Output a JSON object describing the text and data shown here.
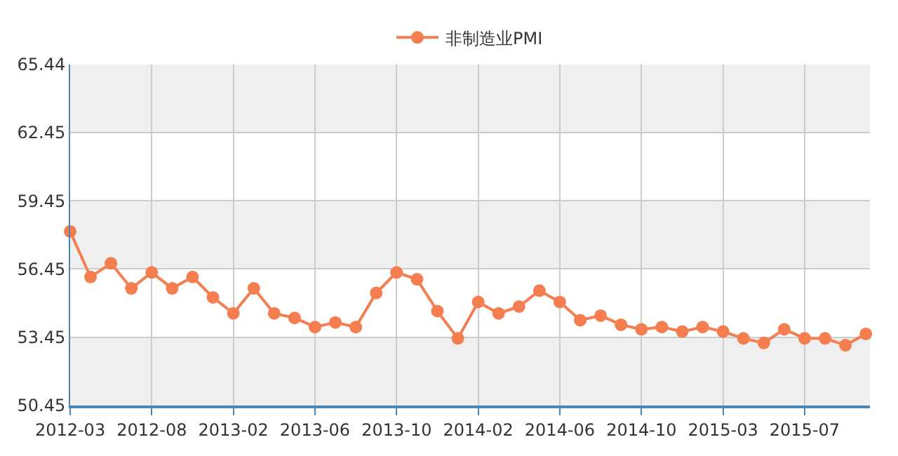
{
  "chart_data": {
    "type": "line",
    "categories": [
      "2012-03",
      null,
      null,
      null,
      "2012-08",
      null,
      null,
      null,
      "2013-02",
      null,
      null,
      null,
      "2013-06",
      null,
      null,
      null,
      "2013-10",
      null,
      null,
      null,
      "2014-02",
      null,
      null,
      null,
      "2014-06",
      null,
      null,
      null,
      "2014-10",
      null,
      null,
      null,
      "2015-03",
      null,
      null,
      null,
      "2015-07",
      null,
      null,
      null
    ],
    "series": [
      {
        "name": "非制造业PMI",
        "color": "#f47e4f",
        "values": [
          58.1,
          56.1,
          56.7,
          55.6,
          56.3,
          55.6,
          56.1,
          55.2,
          54.5,
          55.6,
          54.5,
          54.3,
          53.9,
          54.1,
          53.9,
          55.4,
          56.3,
          56.0,
          54.6,
          53.4,
          55.0,
          54.5,
          54.8,
          55.5,
          55.0,
          54.2,
          54.4,
          54.0,
          53.8,
          53.9,
          53.7,
          53.9,
          53.7,
          53.4,
          53.2,
          53.8,
          53.4,
          53.4,
          53.1,
          53.6
        ]
      }
    ],
    "ylim": [
      50.45,
      65.44
    ],
    "yticks": [
      50.45,
      53.45,
      56.45,
      59.45,
      62.45,
      65.44
    ],
    "grid": true,
    "legend": "top",
    "marker": "circle",
    "line_style": "solid"
  }
}
